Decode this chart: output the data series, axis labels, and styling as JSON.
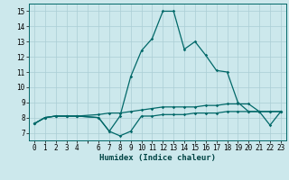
{
  "xlabel": "Humidex (Indice chaleur)",
  "xlim": [
    -0.5,
    23.5
  ],
  "ylim": [
    6.5,
    15.5
  ],
  "xticks": [
    0,
    1,
    2,
    3,
    4,
    6,
    7,
    8,
    9,
    10,
    11,
    12,
    13,
    14,
    15,
    16,
    17,
    18,
    19,
    20,
    21,
    22,
    23
  ],
  "yticks": [
    7,
    8,
    9,
    10,
    11,
    12,
    13,
    14,
    15
  ],
  "bg_color": "#cce8ec",
  "grid_color": "#aacdd4",
  "line_color": "#006868",
  "line1_x": [
    0,
    1,
    2,
    3,
    4,
    6,
    7,
    8,
    9,
    10,
    11,
    12,
    13,
    14,
    15,
    16,
    17,
    18,
    19,
    20,
    21,
    22,
    23
  ],
  "line1_y": [
    7.6,
    8.0,
    8.1,
    8.1,
    8.1,
    8.0,
    7.1,
    6.8,
    7.1,
    8.1,
    8.1,
    8.2,
    8.2,
    8.2,
    8.3,
    8.3,
    8.3,
    8.4,
    8.4,
    8.4,
    8.4,
    8.4,
    8.4
  ],
  "line2_x": [
    0,
    1,
    2,
    3,
    4,
    6,
    7,
    8,
    9,
    10,
    11,
    12,
    13,
    14,
    15,
    16,
    17,
    18,
    19,
    20,
    21,
    22,
    23
  ],
  "line2_y": [
    7.6,
    8.0,
    8.1,
    8.1,
    8.1,
    8.0,
    7.1,
    8.1,
    10.7,
    12.4,
    13.2,
    15.0,
    15.0,
    12.5,
    13.0,
    12.1,
    11.1,
    11.0,
    9.0,
    8.4,
    8.4,
    7.5,
    8.4
  ],
  "line3_x": [
    0,
    1,
    2,
    3,
    4,
    6,
    7,
    8,
    9,
    10,
    11,
    12,
    13,
    14,
    15,
    16,
    17,
    18,
    19,
    20,
    21,
    22,
    23
  ],
  "line3_y": [
    7.6,
    8.0,
    8.1,
    8.1,
    8.1,
    8.2,
    8.3,
    8.3,
    8.4,
    8.5,
    8.6,
    8.7,
    8.7,
    8.7,
    8.7,
    8.8,
    8.8,
    8.9,
    8.9,
    8.9,
    8.4,
    8.4,
    8.4
  ],
  "xlabel_fontsize": 6.5,
  "tick_fontsize": 5.5,
  "marker_size": 1.8,
  "line_width": 0.9
}
